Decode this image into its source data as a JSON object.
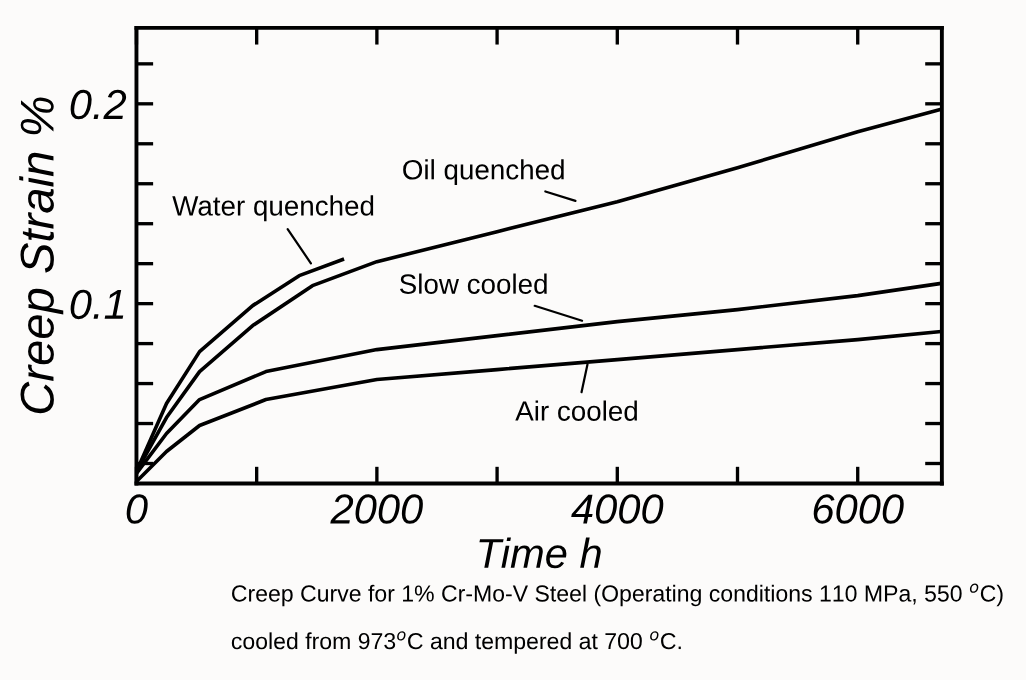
{
  "chart_data": {
    "type": "line",
    "xlabel": "Time h",
    "ylabel": "Creep Strain %",
    "xlim": [
      0,
      6700
    ],
    "ylim": [
      0.01,
      0.238
    ],
    "xticks": [
      0,
      {
        "value": 1000,
        "label": null
      },
      2000,
      {
        "value": 3000,
        "label": null
      },
      4000,
      {
        "value": 5000,
        "label": null
      },
      6000
    ],
    "yticks": [
      {
        "value": 0.02,
        "label": null
      },
      {
        "value": 0.04,
        "label": null
      },
      {
        "value": 0.06,
        "label": null
      },
      {
        "value": 0.08,
        "label": null
      },
      0.1,
      {
        "value": 0.12,
        "label": null
      },
      {
        "value": 0.14,
        "label": null
      },
      {
        "value": 0.16,
        "label": null
      },
      {
        "value": 0.18,
        "label": null
      },
      0.2,
      {
        "value": 0.22,
        "label": null
      }
    ],
    "grid": false,
    "legend": false,
    "marker": "none",
    "line_style": "solid",
    "series": [
      {
        "color": "#000000",
        "x": [
          0,
          250,
          525,
          967,
          1354,
          1713
        ],
        "values": [
          0.016,
          0.05,
          0.076,
          0.099,
          0.114,
          0.122
        ]
      },
      {
        "color": "#000000",
        "x": [
          0,
          250,
          525,
          967,
          1464,
          2000,
          3000,
          4000,
          5000,
          6000,
          6680
        ],
        "values": [
          0.016,
          0.043,
          0.066,
          0.089,
          0.109,
          0.121,
          0.136,
          0.151,
          0.168,
          0.186,
          0.197
        ]
      },
      {
        "color": "#000000",
        "x": [
          0,
          250,
          525,
          1077,
          2000,
          3000,
          4000,
          5000,
          6000,
          6680
        ],
        "values": [
          0.015,
          0.035,
          0.052,
          0.066,
          0.077,
          0.084,
          0.091,
          0.097,
          0.104,
          0.11
        ]
      },
      {
        "color": "#000000",
        "x": [
          0,
          250,
          525,
          1077,
          2000,
          3000,
          4000,
          5000,
          6000,
          6680
        ],
        "values": [
          0.011,
          0.026,
          0.039,
          0.052,
          0.062,
          0.067,
          0.072,
          0.077,
          0.082,
          0.086
        ]
      }
    ],
    "annotations": [
      {
        "text": "Water quenched",
        "x": 1464,
        "y": 0.119
      },
      {
        "text": "Oil quenched",
        "x": 3674,
        "y": 0.151
      },
      {
        "text": "Slow cooled",
        "x": 3729,
        "y": 0.091
      },
      {
        "text": "Air cooled",
        "x": 3757,
        "y": 0.071
      },
      "Creep Curve for 1% Cr-Mo-V Steel (Operating conditions 110 MPa, 550 $^{o}$C)",
      "cooled from 973$^{o}$C and tempered at 700 $^{o}$C."
    ]
  }
}
